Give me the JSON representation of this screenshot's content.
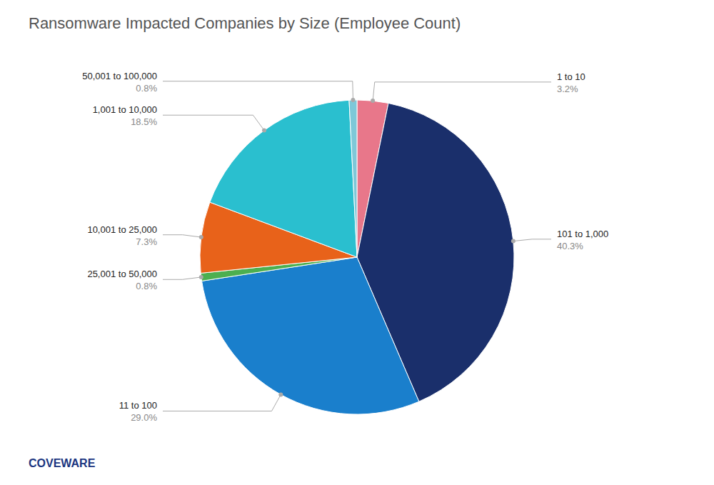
{
  "chart_data": {
    "type": "pie",
    "title": "Ransomware Impacted Companies by Size (Employee Count)",
    "categories": [
      "1 to 10",
      "101 to 1,000",
      "11 to 100",
      "25,001 to 50,000",
      "10,001 to 25,000",
      "1,001 to 10,000",
      "50,001 to 100,000"
    ],
    "values": [
      3.2,
      40.3,
      29.0,
      0.8,
      7.3,
      18.5,
      0.8
    ],
    "value_labels": [
      "3.2%",
      "40.3%",
      "29.0%",
      "0.8%",
      "7.3%",
      "18.5%",
      "0.8%"
    ],
    "colors": [
      "#E8778A",
      "#1A2F6B",
      "#1A7FCC",
      "#4CAF50",
      "#E8621A",
      "#2ABFCF",
      "#7EC8D8"
    ],
    "data_labels": true,
    "annotations": [
      "COVEWARE"
    ]
  }
}
